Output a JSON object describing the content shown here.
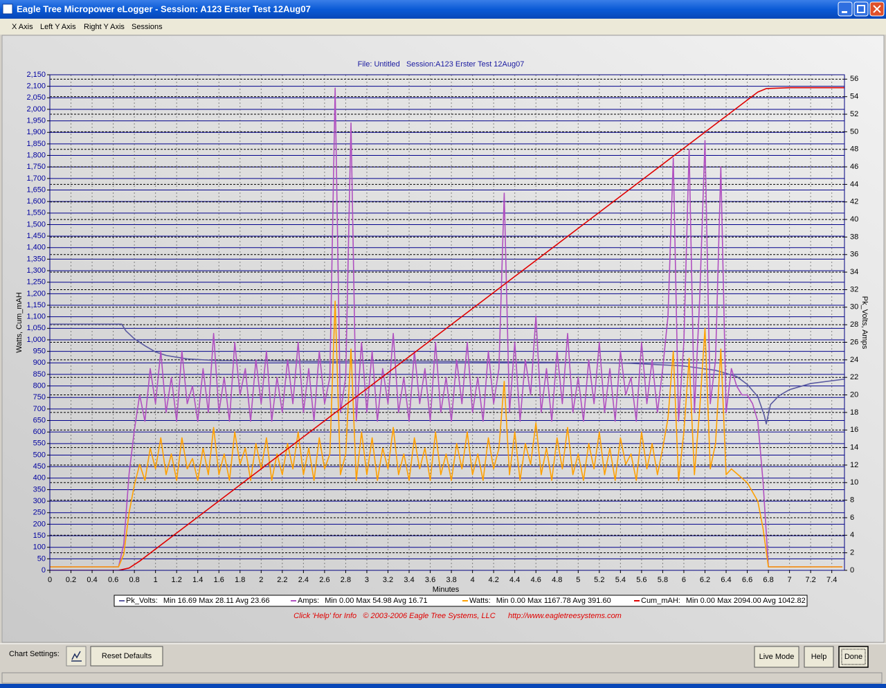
{
  "window": {
    "title": "Eagle Tree Micropower eLogger - Session: A123 Erster Test 12Aug07",
    "menu": [
      "X Axis",
      "Left Y Axis",
      "Right Y Axis",
      "Sessions"
    ]
  },
  "chart_data": {
    "type": "line",
    "title": "File: Untitled   Session:A123 Erster Test 12Aug07",
    "x_label": "Minutes",
    "y_label": "Watts, Cum_mAH",
    "y2_label": "Pk_Volts, Amps",
    "xlim": [
      0,
      7.52
    ],
    "xticks": [
      0,
      0.2,
      0.4,
      0.6,
      0.8,
      1,
      1.2,
      1.4,
      1.6,
      1.8,
      2,
      2.2,
      2.4,
      2.6,
      2.8,
      3,
      3.2,
      3.4,
      3.6,
      3.8,
      4,
      4.2,
      4.4,
      4.6,
      4.8,
      5,
      5.2,
      5.4,
      5.6,
      5.8,
      6,
      6.2,
      6.4,
      6.6,
      6.8,
      7,
      7.2,
      7.4
    ],
    "ylim": [
      0,
      2150
    ],
    "yticks": [
      0,
      50,
      100,
      150,
      200,
      250,
      300,
      350,
      400,
      450,
      500,
      550,
      600,
      650,
      700,
      750,
      800,
      850,
      900,
      950,
      {
        "value": 1000,
        "label": "1,000"
      },
      {
        "value": 1050,
        "label": "1,050"
      },
      {
        "value": 1100,
        "label": "1,100"
      },
      {
        "value": 1150,
        "label": "1,150"
      },
      {
        "value": 1200,
        "label": "1,200"
      },
      {
        "value": 1250,
        "label": "1,250"
      },
      {
        "value": 1300,
        "label": "1,300"
      },
      {
        "value": 1350,
        "label": "1,350"
      },
      {
        "value": 1400,
        "label": "1,400"
      },
      {
        "value": 1450,
        "label": "1,450"
      },
      {
        "value": 1500,
        "label": "1,500"
      },
      {
        "value": 1550,
        "label": "1,550"
      },
      {
        "value": 1600,
        "label": "1,600"
      },
      {
        "value": 1650,
        "label": "1,650"
      },
      {
        "value": 1700,
        "label": "1,700"
      },
      {
        "value": 1750,
        "label": "1,750"
      },
      {
        "value": 1800,
        "label": "1,800"
      },
      {
        "value": 1850,
        "label": "1,850"
      },
      {
        "value": 1900,
        "label": "1,900"
      },
      {
        "value": 1950,
        "label": "1,950"
      },
      {
        "value": 2000,
        "label": "2,000"
      },
      {
        "value": 2050,
        "label": "2,050"
      },
      {
        "value": 2100,
        "label": "2,100"
      },
      {
        "value": 2150,
        "label": "2,150"
      }
    ],
    "y2lim": [
      0,
      56.5
    ],
    "y2ticks": [
      0,
      2,
      4,
      6,
      8,
      10,
      12,
      14,
      16,
      18,
      20,
      22,
      24,
      26,
      28,
      30,
      32,
      34,
      36,
      38,
      40,
      42,
      44,
      46,
      48,
      50,
      52,
      54,
      56
    ],
    "grid": true,
    "x": [
      0,
      0.05,
      0.1,
      0.15,
      0.2,
      0.25,
      0.3,
      0.35,
      0.4,
      0.45,
      0.5,
      0.55,
      0.6,
      0.65,
      0.7,
      0.75,
      0.8,
      0.85,
      0.9,
      0.95,
      1,
      1.05,
      1.1,
      1.15,
      1.2,
      1.25,
      1.3,
      1.35,
      1.4,
      1.45,
      1.5,
      1.55,
      1.6,
      1.65,
      1.7,
      1.75,
      1.8,
      1.85,
      1.9,
      1.95,
      2,
      2.05,
      2.1,
      2.15,
      2.2,
      2.25,
      2.3,
      2.35,
      2.4,
      2.45,
      2.5,
      2.55,
      2.6,
      2.65,
      2.7,
      2.75,
      2.8,
      2.85,
      2.9,
      2.95,
      3,
      3.05,
      3.1,
      3.15,
      3.2,
      3.25,
      3.3,
      3.35,
      3.4,
      3.45,
      3.5,
      3.55,
      3.6,
      3.65,
      3.7,
      3.75,
      3.8,
      3.85,
      3.9,
      3.95,
      4,
      4.05,
      4.1,
      4.15,
      4.2,
      4.25,
      4.3,
      4.35,
      4.4,
      4.45,
      4.5,
      4.55,
      4.6,
      4.65,
      4.7,
      4.75,
      4.8,
      4.85,
      4.9,
      4.95,
      5,
      5.05,
      5.1,
      5.15,
      5.2,
      5.25,
      5.3,
      5.35,
      5.4,
      5.45,
      5.5,
      5.55,
      5.6,
      5.65,
      5.7,
      5.75,
      5.8,
      5.85,
      5.9,
      5.95,
      6,
      6.05,
      6.1,
      6.15,
      6.2,
      6.25,
      6.3,
      6.35,
      6.4,
      6.45,
      6.5,
      6.55,
      6.6,
      6.65,
      6.7,
      6.75,
      6.8,
      6.85,
      6.9,
      6.95,
      7,
      7.05,
      7.1,
      7.15,
      7.2,
      7.25,
      7.3,
      7.35,
      7.4,
      7.45,
      7.5
    ],
    "series": [
      {
        "name": "Pk_Volts:",
        "summary": "Min 16.69 Max 28.11 Avg 23.66",
        "color": "#5a5aa0",
        "axis": "y2",
        "x": [
          0,
          0.68,
          0.72,
          0.8,
          0.9,
          1,
          1.1,
          1.3,
          1.6,
          2,
          2.7,
          3,
          4,
          5,
          5.5,
          6,
          6.3,
          6.5,
          6.6,
          6.7,
          6.76,
          6.78,
          6.82,
          6.9,
          7,
          7.2,
          7.52
        ],
        "values": [
          28.07,
          28.07,
          27.3,
          26.4,
          25.6,
          24.9,
          24.5,
          24.1,
          23.9,
          23.9,
          23.8,
          23.9,
          23.8,
          23.7,
          23.6,
          23.3,
          22.8,
          22.1,
          21.2,
          19.8,
          17.7,
          16.69,
          18.9,
          19.9,
          20.6,
          21.3,
          21.8
        ]
      },
      {
        "name": "Amps:",
        "summary": "Min 0.00 Max 54.98 Avg 16.71",
        "color": "#b050c0",
        "axis": "y2",
        "values": [
          0.4,
          0.4,
          0.4,
          0.4,
          0.4,
          0.4,
          0.4,
          0.4,
          0.4,
          0.4,
          0.4,
          0.4,
          0.4,
          0.4,
          3,
          11,
          16,
          20,
          17,
          23,
          19,
          25,
          18,
          22,
          17,
          25,
          19,
          21,
          17,
          23,
          18,
          27,
          18,
          22,
          17,
          26,
          20,
          23,
          17,
          24,
          19,
          25,
          17,
          22,
          18,
          24,
          19,
          26,
          18,
          23,
          17,
          25,
          19,
          22,
          54.98,
          18,
          22,
          51,
          17,
          26,
          18,
          25,
          17,
          23,
          19,
          27,
          18,
          22,
          17,
          25,
          19,
          23,
          17,
          26,
          18,
          22,
          17,
          24,
          19,
          26,
          18,
          22,
          17,
          25,
          19,
          23,
          43,
          18,
          26,
          17,
          24,
          20,
          29,
          18,
          23,
          17,
          25,
          19,
          27,
          18,
          22,
          17,
          24,
          19,
          26,
          18,
          23,
          17,
          25,
          20,
          22,
          17,
          26,
          19,
          24,
          18,
          23,
          29,
          47,
          17,
          26,
          48,
          18,
          31,
          49,
          19,
          24,
          46,
          18,
          23,
          21,
          20,
          20,
          19,
          17,
          10,
          0.4,
          0.4,
          0.4,
          0.4,
          0.4,
          0.4,
          0.4,
          0.4,
          0.4,
          0.4,
          0.4,
          0.4,
          0.4,
          0.4,
          0.4
        ]
      },
      {
        "name": "Watts:",
        "summary": "Min 0.00 Max 1167.78 Avg 391.60",
        "color": "#ffa000",
        "axis": "y",
        "values": [
          15,
          15,
          15,
          15,
          15,
          15,
          15,
          15,
          15,
          15,
          15,
          15,
          15,
          15,
          70,
          250,
          370,
          460,
          390,
          530,
          440,
          575,
          415,
          505,
          390,
          575,
          440,
          485,
          390,
          530,
          415,
          620,
          415,
          505,
          390,
          600,
          460,
          530,
          390,
          550,
          440,
          575,
          390,
          505,
          415,
          550,
          440,
          600,
          415,
          530,
          390,
          575,
          440,
          505,
          1167.78,
          415,
          505,
          960,
          390,
          600,
          415,
          575,
          390,
          530,
          440,
          620,
          415,
          505,
          390,
          575,
          440,
          530,
          390,
          600,
          415,
          505,
          390,
          550,
          440,
          600,
          415,
          505,
          390,
          575,
          440,
          530,
          820,
          415,
          600,
          390,
          550,
          460,
          640,
          415,
          530,
          390,
          575,
          440,
          620,
          415,
          505,
          390,
          550,
          440,
          600,
          415,
          530,
          390,
          575,
          460,
          505,
          390,
          600,
          440,
          550,
          415,
          530,
          660,
          950,
          390,
          600,
          920,
          415,
          700,
          1050,
          440,
          550,
          960,
          415,
          440,
          420,
          400,
          380,
          340,
          300,
          180,
          15,
          15,
          15,
          15,
          15,
          15,
          15,
          15,
          15,
          15,
          15,
          15,
          15,
          15,
          15
        ]
      },
      {
        "name": "Cum_mAH:",
        "summary": "Min 0.00 Max 2094.00 Avg 1042.82",
        "color": "#e00000",
        "axis": "y",
        "x": [
          0,
          0.65,
          0.75,
          0.85,
          6.7,
          6.78,
          7,
          7.52
        ],
        "values": [
          0,
          0,
          10,
          40,
          2075,
          2090,
          2094,
          2094
        ]
      }
    ]
  },
  "footer": "Click 'Help' for Info   © 2003-2006 Eagle Tree Systems, LLC      http://www.eagletreesystems.com",
  "controls": {
    "chart_settings_label": "Chart Settings:",
    "buttons": [
      "Reset Defaults",
      "Live Mode",
      "Help",
      "Done"
    ]
  }
}
